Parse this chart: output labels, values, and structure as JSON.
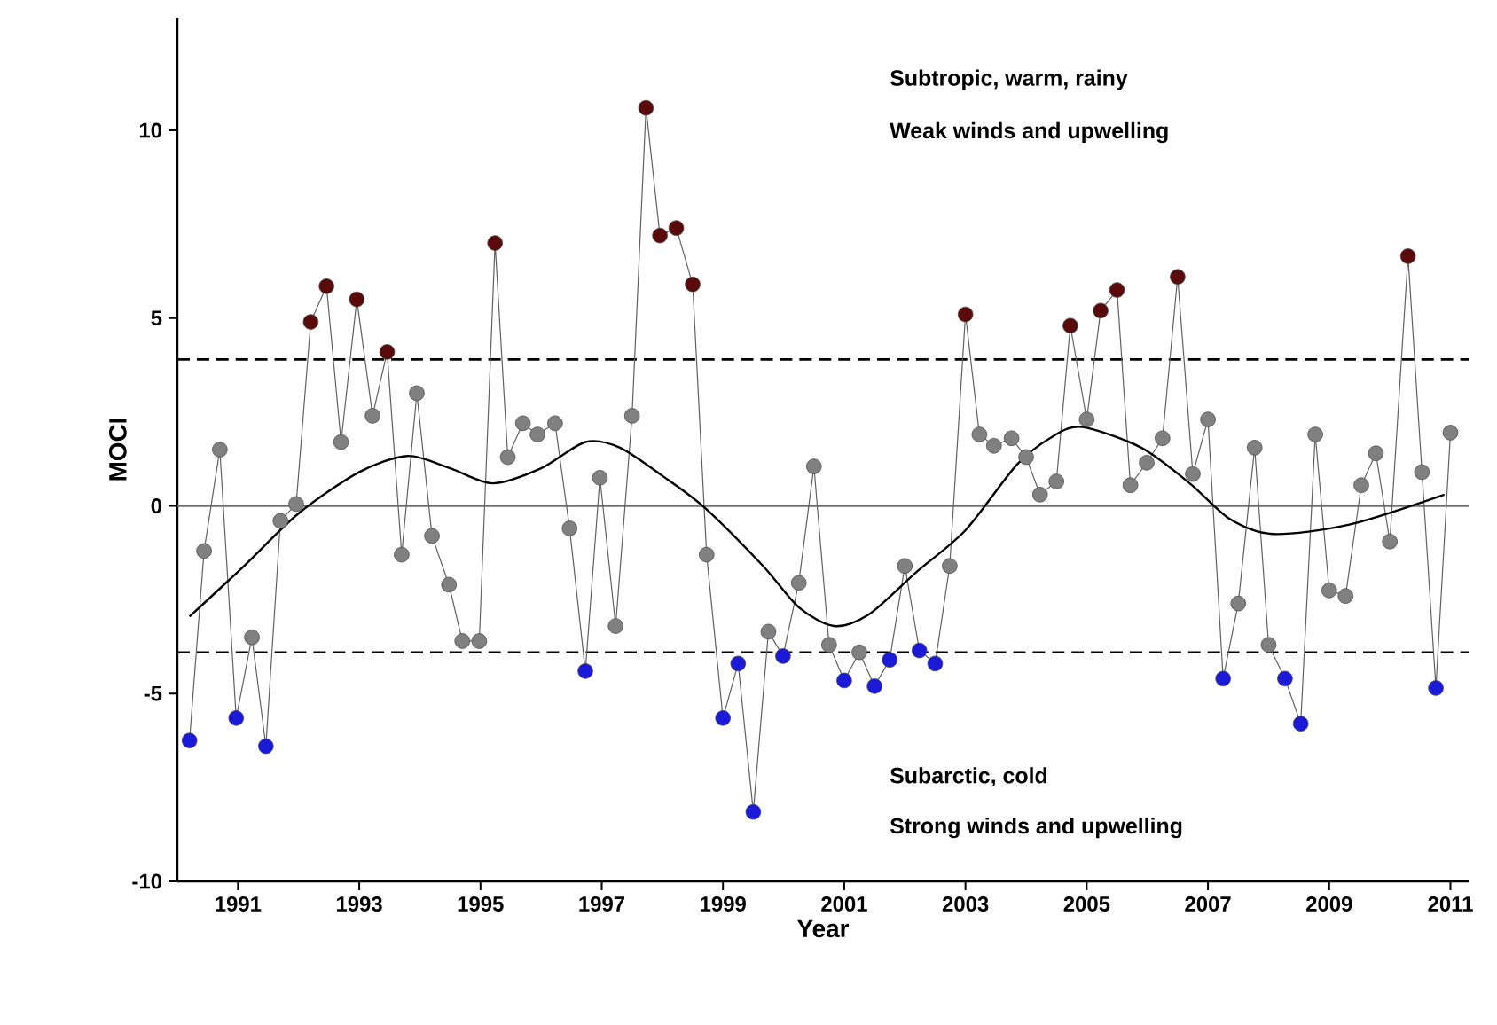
{
  "chart_data": {
    "type": "line",
    "xlabel": "Year",
    "ylabel": "MOCI",
    "xlim": [
      1990,
      2011.3
    ],
    "ylim": [
      -10,
      13
    ],
    "xticks": [
      1991,
      1993,
      1995,
      1997,
      1999,
      2001,
      2003,
      2005,
      2007,
      2009,
      2011
    ],
    "yticks": [
      -10,
      -5,
      0,
      5,
      10
    ],
    "series": [
      {
        "color": "#606060",
        "marker": "circle",
        "x": [
          1990.2,
          1990.44,
          1990.7,
          1990.97,
          1991.23,
          1991.46,
          1991.7,
          1991.96,
          1992.2,
          1992.46,
          1992.7,
          1992.96,
          1993.22,
          1993.46,
          1993.7,
          1993.95,
          1994.2,
          1994.48,
          1994.7,
          1994.98,
          1995.24,
          1995.45,
          1995.7,
          1995.94,
          1996.23,
          1996.47,
          1996.73,
          1996.97,
          1997.23,
          1997.5,
          1997.73,
          1997.96,
          1998.23,
          1998.5,
          1998.73,
          1999.0,
          1999.25,
          1999.5,
          1999.75,
          1999.99,
          2000.25,
          2000.5,
          2000.75,
          2001.0,
          2001.25,
          2001.5,
          2001.75,
          2002.0,
          2002.24,
          2002.5,
          2002.74,
          2003.0,
          2003.23,
          2003.47,
          2003.76,
          2004.0,
          2004.23,
          2004.5,
          2004.73,
          2005.0,
          2005.23,
          2005.5,
          2005.72,
          2005.99,
          2006.25,
          2006.5,
          2006.75,
          2007.0,
          2007.25,
          2007.5,
          2007.77,
          2008.0,
          2008.27,
          2008.53,
          2008.77,
          2009.0,
          2009.27,
          2009.53,
          2009.77,
          2010.0,
          2010.3,
          2010.53,
          2010.76,
          2011.0
        ],
        "values": [
          -6.25,
          -1.2,
          1.5,
          -5.65,
          -3.5,
          -6.4,
          -0.4,
          0.05,
          4.9,
          5.85,
          1.7,
          5.5,
          2.4,
          4.1,
          -1.3,
          3.0,
          -0.8,
          -2.1,
          -3.6,
          -3.6,
          7.0,
          1.3,
          2.2,
          1.9,
          2.2,
          -0.6,
          -4.4,
          0.75,
          -3.2,
          2.4,
          10.6,
          7.2,
          7.4,
          5.9,
          -1.3,
          -5.65,
          -4.2,
          -8.15,
          -3.35,
          -4.0,
          -2.05,
          1.05,
          -3.7,
          -4.65,
          -3.9,
          -4.8,
          -4.1,
          -1.6,
          -3.85,
          -4.2,
          -1.6,
          5.1,
          1.9,
          1.6,
          1.8,
          1.3,
          0.3,
          0.65,
          4.8,
          2.3,
          5.2,
          5.75,
          0.55,
          1.15,
          1.8,
          6.1,
          0.85,
          2.3,
          -4.6,
          -2.6,
          1.55,
          -3.7,
          -4.6,
          -5.8,
          1.9,
          -2.25,
          -2.4,
          0.55,
          1.4,
          -0.95,
          6.65,
          0.9,
          -4.85,
          1.95
        ],
        "colors": [
          "#1a1ad8",
          "#808080",
          "#808080",
          "#1a1ad8",
          "#808080",
          "#1a1ad8",
          "#808080",
          "#808080",
          "#5a0a0a",
          "#5a0a0a",
          "#808080",
          "#5a0a0a",
          "#808080",
          "#5a0a0a",
          "#808080",
          "#808080",
          "#808080",
          "#808080",
          "#808080",
          "#808080",
          "#5a0a0a",
          "#808080",
          "#808080",
          "#808080",
          "#808080",
          "#808080",
          "#1a1ad8",
          "#808080",
          "#808080",
          "#808080",
          "#5a0a0a",
          "#5a0a0a",
          "#5a0a0a",
          "#5a0a0a",
          "#808080",
          "#1a1ad8",
          "#1a1ad8",
          "#1a1ad8",
          "#808080",
          "#1a1ad8",
          "#808080",
          "#808080",
          "#808080",
          "#1a1ad8",
          "#808080",
          "#1a1ad8",
          "#1a1ad8",
          "#808080",
          "#1a1ad8",
          "#1a1ad8",
          "#808080",
          "#5a0a0a",
          "#808080",
          "#808080",
          "#808080",
          "#808080",
          "#808080",
          "#808080",
          "#5a0a0a",
          "#808080",
          "#5a0a0a",
          "#5a0a0a",
          "#808080",
          "#808080",
          "#808080",
          "#5a0a0a",
          "#808080",
          "#808080",
          "#1a1ad8",
          "#808080",
          "#808080",
          "#808080",
          "#1a1ad8",
          "#1a1ad8",
          "#808080",
          "#808080",
          "#808080",
          "#808080",
          "#808080",
          "#808080",
          "#5a0a0a",
          "#808080",
          "#1a1ad8",
          "#808080"
        ]
      },
      {
        "color": "#000000",
        "marker": "none",
        "x": [
          1990.2,
          1991.1,
          1992.0,
          1993.0,
          1993.8,
          1994.5,
          1995.2,
          1996.0,
          1996.73,
          1997.3,
          1998.0,
          1998.7,
          1999.66,
          2000.25,
          2000.83,
          2001.4,
          2002.2,
          2003.0,
          2003.85,
          2004.44,
          2004.93,
          2005.9,
          2006.7,
          2007.36,
          2008.07,
          2009.33,
          2010.9
        ],
        "values": [
          -2.95,
          -1.6,
          -0.2,
          0.9,
          1.33,
          1.0,
          0.6,
          1.0,
          1.7,
          1.55,
          0.8,
          -0.05,
          -1.6,
          -2.7,
          -3.2,
          -2.9,
          -1.75,
          -0.65,
          1.1,
          1.85,
          2.1,
          1.55,
          0.6,
          -0.35,
          -0.75,
          -0.5,
          0.3
        ]
      }
    ],
    "ref_lines": [
      {
        "axis": "y",
        "value": 3.9,
        "color": "#000000",
        "line_style": "dashed"
      },
      {
        "axis": "y",
        "value": 0,
        "color": "#707070",
        "line_style": "solid"
      },
      {
        "axis": "y",
        "value": -3.9,
        "color": "#000000",
        "line_style": "dashed"
      }
    ],
    "annotations": [
      "Subtropic, warm, rainy",
      "Weak winds and upwelling",
      "Subarctic, cold",
      "Strong winds and upwelling"
    ]
  }
}
